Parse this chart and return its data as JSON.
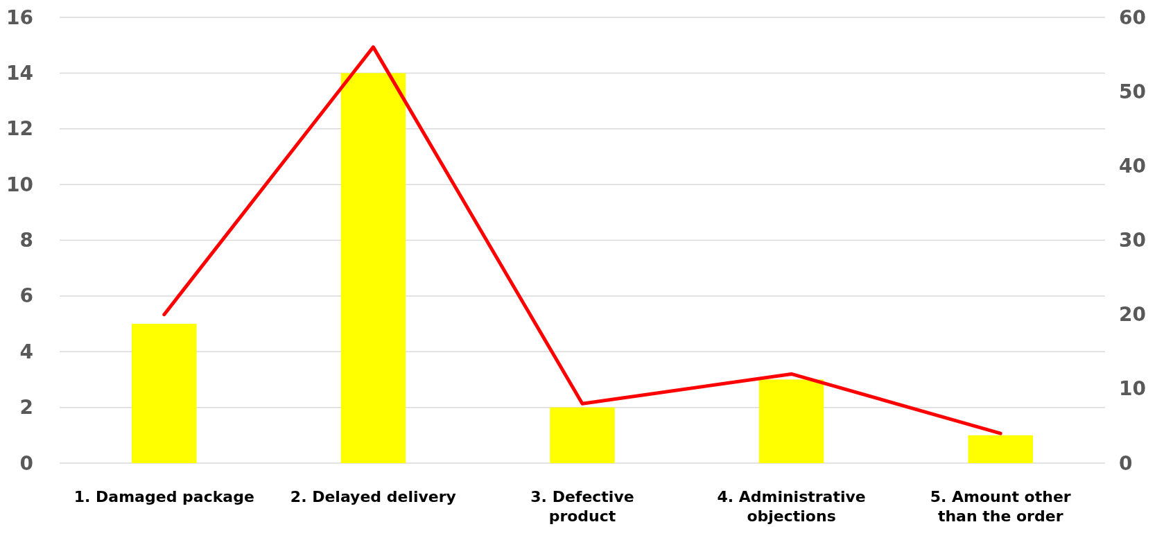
{
  "chart_data": {
    "type": "bar",
    "categories": [
      "1. Damaged package",
      "2. Delayed delivery",
      "3. Defective product",
      "4. Administrative objections",
      "5. Amount other than the order"
    ],
    "series": [
      {
        "color": "#ffff00",
        "values": [
          5,
          14,
          2,
          3,
          1
        ]
      },
      {
        "type": "line",
        "axis": "y2",
        "color": "#ff0000",
        "values": [
          20,
          56,
          8,
          12,
          4
        ],
        "marker": "none",
        "line_style": "solid"
      }
    ],
    "ylim": [
      0,
      16
    ],
    "yticks": [
      0,
      2,
      4,
      6,
      8,
      10,
      12,
      14,
      16
    ],
    "y2lim": [
      0,
      60
    ],
    "y2ticks": [
      0,
      10,
      20,
      30,
      40,
      50,
      60
    ],
    "grid": "y"
  }
}
